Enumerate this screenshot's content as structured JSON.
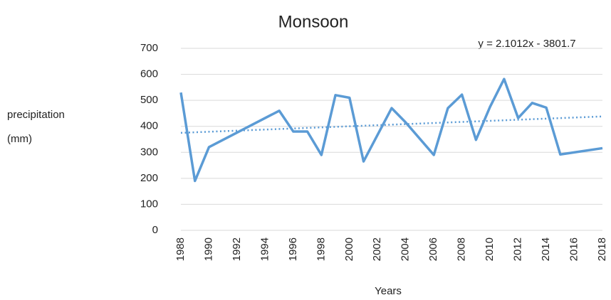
{
  "chart_data": {
    "type": "line",
    "title": "Monsoon",
    "xlabel": "Years",
    "ylabel": [
      "precipitation",
      "(mm)"
    ],
    "x": [
      1988,
      1989,
      1990,
      1995,
      1996,
      1997,
      1998,
      1999,
      2000,
      2001,
      2003,
      2004,
      2006,
      2007,
      2008,
      2009,
      2010,
      2011,
      2012,
      2013,
      2014,
      2015,
      2018
    ],
    "series": [
      {
        "color": "#5b9bd5",
        "values": [
          530,
          190,
          320,
          460,
          380,
          380,
          290,
          520,
          510,
          265,
          470,
          415,
          290,
          470,
          522,
          348,
          475,
          582,
          432,
          490,
          472,
          292,
          316
        ]
      }
    ],
    "trendline": {
      "x": [
        1988,
        2018
      ],
      "values": [
        375,
        438
      ],
      "color": "#5b9bd5",
      "label": "y = 2.1012x - 3801.7"
    },
    "xlim": [
      1988,
      2018
    ],
    "xticks": [
      1988,
      1990,
      1992,
      1994,
      1996,
      1998,
      2000,
      2002,
      2004,
      2006,
      2008,
      2010,
      2012,
      2014,
      2016,
      2018
    ],
    "ylim": [
      0,
      700
    ],
    "yticks": [
      0,
      100,
      200,
      300,
      400,
      500,
      600,
      700
    ],
    "grid": true
  }
}
